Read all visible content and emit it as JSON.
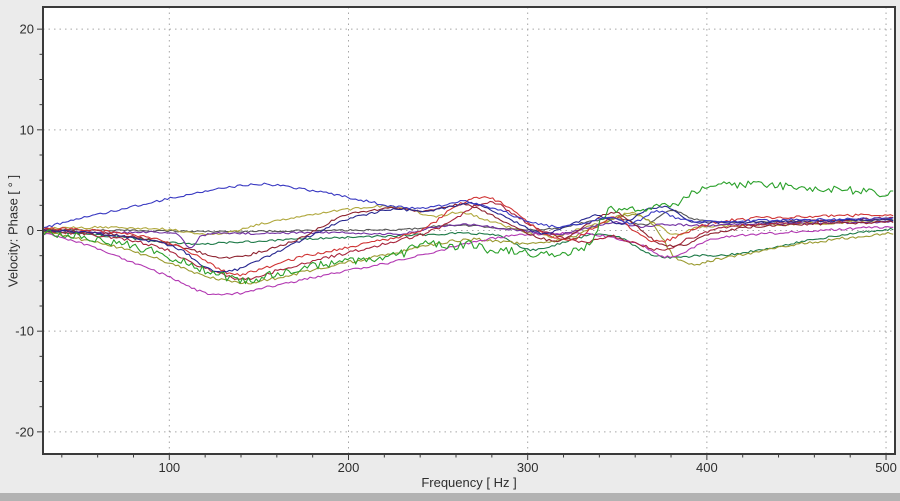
{
  "window": {
    "background": "#ebebeb",
    "bottom_strip_color": "#b2b2b2"
  },
  "chart_data": {
    "type": "line",
    "title": "",
    "xlabel": "Frequency [ Hz ]",
    "ylabel": "Velocity: Phase [ ° ]",
    "xlim": [
      29.5,
      505
    ],
    "ylim": [
      -22.2,
      22.2
    ],
    "x_ticks": [
      100,
      200,
      300,
      400,
      500
    ],
    "x_minor_step": 20,
    "y_ticks": [
      -20,
      -10,
      0,
      10,
      20
    ],
    "y_minor_step": 2.5,
    "grid_style": "dotted",
    "legend": "none",
    "plot_bg": "#ffffff",
    "frame_color": "#3a3a3a",
    "grid_color": "#a6a6a6",
    "tick_color": "#3a3a3a",
    "tick_label_color": "#2e2e2e",
    "series": [
      {
        "name": "gray",
        "color": "#565656",
        "noise": 0.08,
        "points": [
          [
            30,
            0.1
          ],
          [
            80,
            0.0
          ],
          [
            130,
            -0.1
          ],
          [
            180,
            0.0
          ],
          [
            230,
            0.1
          ],
          [
            255,
            0.5
          ],
          [
            275,
            0.4
          ],
          [
            295,
            0.1
          ],
          [
            315,
            0.2
          ],
          [
            335,
            0.9
          ],
          [
            352,
            1.2
          ],
          [
            366,
            0.6
          ],
          [
            380,
            2.0
          ],
          [
            392,
            1.2
          ],
          [
            410,
            0.8
          ],
          [
            440,
            0.9
          ],
          [
            480,
            1.0
          ],
          [
            512,
            1.1
          ]
        ]
      },
      {
        "name": "dark-yellow",
        "color": "#b0a83e",
        "noise": 0.12,
        "points": [
          [
            30,
            0.2
          ],
          [
            70,
            0.3
          ],
          [
            100,
            0.1
          ],
          [
            125,
            -0.4
          ],
          [
            150,
            0.6
          ],
          [
            175,
            1.5
          ],
          [
            200,
            2.1
          ],
          [
            220,
            2.4
          ],
          [
            235,
            2.0
          ],
          [
            248,
            1.4
          ],
          [
            262,
            1.8
          ],
          [
            275,
            1.2
          ],
          [
            288,
            0.4
          ],
          [
            300,
            -0.2
          ],
          [
            315,
            -0.6
          ],
          [
            330,
            0.2
          ],
          [
            345,
            1.0
          ],
          [
            358,
            1.7
          ],
          [
            370,
            0.8
          ],
          [
            382,
            -0.4
          ],
          [
            395,
            0.3
          ],
          [
            420,
            0.5
          ],
          [
            460,
            0.7
          ],
          [
            512,
            1.0
          ]
        ]
      },
      {
        "name": "sea-green",
        "color": "#1e7a48",
        "noise": 0.1,
        "points": [
          [
            30,
            -0.1
          ],
          [
            70,
            -0.6
          ],
          [
            110,
            -1.3
          ],
          [
            145,
            -1.1
          ],
          [
            180,
            -0.8
          ],
          [
            215,
            -0.6
          ],
          [
            245,
            -0.4
          ],
          [
            265,
            -0.3
          ],
          [
            285,
            -0.6
          ],
          [
            300,
            -1.9
          ],
          [
            312,
            -1.6
          ],
          [
            325,
            -0.9
          ],
          [
            338,
            -0.4
          ],
          [
            352,
            -0.7
          ],
          [
            366,
            -2.2
          ],
          [
            380,
            -2.7
          ],
          [
            395,
            -2.5
          ],
          [
            412,
            -2.4
          ],
          [
            430,
            -1.9
          ],
          [
            450,
            -1.2
          ],
          [
            470,
            -0.6
          ],
          [
            490,
            -0.1
          ],
          [
            512,
            0.3
          ]
        ]
      },
      {
        "name": "olive",
        "color": "#9a9a30",
        "noise": 0.15,
        "points": [
          [
            30,
            -0.2
          ],
          [
            60,
            -1.2
          ],
          [
            90,
            -2.6
          ],
          [
            115,
            -4.2
          ],
          [
            140,
            -5.2
          ],
          [
            160,
            -4.7
          ],
          [
            185,
            -3.7
          ],
          [
            210,
            -2.8
          ],
          [
            232,
            -2.0
          ],
          [
            250,
            -1.3
          ],
          [
            268,
            -0.9
          ],
          [
            285,
            -1.1
          ],
          [
            300,
            -1.3
          ],
          [
            315,
            -1.0
          ],
          [
            330,
            -0.3
          ],
          [
            344,
            0.9
          ],
          [
            358,
            1.6
          ],
          [
            370,
            0.6
          ],
          [
            382,
            -2.6
          ],
          [
            392,
            -3.3
          ],
          [
            405,
            -2.9
          ],
          [
            425,
            -2.2
          ],
          [
            450,
            -1.4
          ],
          [
            475,
            -0.8
          ],
          [
            495,
            -0.4
          ],
          [
            512,
            -0.2
          ]
        ]
      },
      {
        "name": "magenta",
        "color": "#b238b2",
        "noise": 0.12,
        "points": [
          [
            30,
            -0.3
          ],
          [
            55,
            -1.5
          ],
          [
            80,
            -3.2
          ],
          [
            100,
            -4.6
          ],
          [
            115,
            -5.9
          ],
          [
            126,
            -6.4
          ],
          [
            140,
            -6.2
          ],
          [
            158,
            -5.5
          ],
          [
            180,
            -4.7
          ],
          [
            205,
            -3.8
          ],
          [
            228,
            -3.0
          ],
          [
            248,
            -2.1
          ],
          [
            266,
            -1.3
          ],
          [
            284,
            -0.7
          ],
          [
            300,
            -0.4
          ],
          [
            318,
            -0.3
          ],
          [
            335,
            -0.4
          ],
          [
            350,
            -0.8
          ],
          [
            364,
            -1.5
          ],
          [
            376,
            -2.6
          ],
          [
            388,
            -2.1
          ],
          [
            400,
            -1.0
          ],
          [
            418,
            -0.5
          ],
          [
            445,
            -0.2
          ],
          [
            480,
            0.2
          ],
          [
            512,
            0.4
          ]
        ]
      },
      {
        "name": "purple",
        "color": "#7230a2",
        "noise": 0.1,
        "points": [
          [
            30,
            0.0
          ],
          [
            70,
            -0.2
          ],
          [
            105,
            -0.4
          ],
          [
            112,
            -1.8
          ],
          [
            118,
            -0.5
          ],
          [
            150,
            -0.3
          ],
          [
            190,
            -0.2
          ],
          [
            230,
            -0.3
          ],
          [
            250,
            0.4
          ],
          [
            268,
            0.6
          ],
          [
            285,
            0.2
          ],
          [
            300,
            -0.1
          ],
          [
            316,
            -0.4
          ],
          [
            332,
            0.2
          ],
          [
            348,
            0.8
          ],
          [
            362,
            0.4
          ],
          [
            376,
            0.6
          ],
          [
            395,
            0.5
          ],
          [
            420,
            0.6
          ],
          [
            455,
            0.7
          ],
          [
            512,
            0.9
          ]
        ]
      },
      {
        "name": "crimson",
        "color": "#a8253c",
        "noise": 0.15,
        "points": [
          [
            30,
            0.0
          ],
          [
            65,
            -0.6
          ],
          [
            95,
            -1.7
          ],
          [
            118,
            -3.6
          ],
          [
            140,
            -4.8
          ],
          [
            158,
            -4.1
          ],
          [
            180,
            -3.0
          ],
          [
            205,
            -2.0
          ],
          [
            228,
            -1.0
          ],
          [
            244,
            -0.2
          ],
          [
            258,
            1.0
          ],
          [
            270,
            2.4
          ],
          [
            282,
            2.7
          ],
          [
            294,
            1.4
          ],
          [
            306,
            0.2
          ],
          [
            320,
            -0.7
          ],
          [
            334,
            -1.1
          ],
          [
            348,
            -0.6
          ],
          [
            362,
            -1.4
          ],
          [
            376,
            -1.9
          ],
          [
            390,
            -0.8
          ],
          [
            408,
            0.2
          ],
          [
            435,
            0.7
          ],
          [
            470,
            1.0
          ],
          [
            512,
            1.3
          ]
        ]
      },
      {
        "name": "maroon",
        "color": "#8e2330",
        "noise": 0.12,
        "points": [
          [
            30,
            0.1
          ],
          [
            70,
            -0.4
          ],
          [
            100,
            -1.3
          ],
          [
            122,
            -2.4
          ],
          [
            135,
            -2.7
          ],
          [
            155,
            -1.9
          ],
          [
            175,
            -0.6
          ],
          [
            195,
            1.3
          ],
          [
            212,
            2.0
          ],
          [
            228,
            2.2
          ],
          [
            240,
            1.9
          ],
          [
            252,
            2.3
          ],
          [
            265,
            2.6
          ],
          [
            278,
            1.7
          ],
          [
            292,
            0.4
          ],
          [
            306,
            -0.7
          ],
          [
            320,
            -0.9
          ],
          [
            334,
            0.7
          ],
          [
            348,
            1.8
          ],
          [
            360,
            0.5
          ],
          [
            373,
            -1.2
          ],
          [
            386,
            -1.5
          ],
          [
            400,
            -0.5
          ],
          [
            422,
            0.3
          ],
          [
            455,
            0.6
          ],
          [
            512,
            0.9
          ]
        ]
      },
      {
        "name": "red",
        "color": "#d03434",
        "noise": 0.15,
        "points": [
          [
            30,
            0.2
          ],
          [
            60,
            0.0
          ],
          [
            85,
            -0.6
          ],
          [
            105,
            -1.6
          ],
          [
            122,
            -3.2
          ],
          [
            136,
            -4.4
          ],
          [
            150,
            -3.9
          ],
          [
            168,
            -2.9
          ],
          [
            190,
            -2.0
          ],
          [
            212,
            -1.2
          ],
          [
            232,
            -0.5
          ],
          [
            246,
            0.6
          ],
          [
            258,
            2.2
          ],
          [
            268,
            3.1
          ],
          [
            278,
            3.3
          ],
          [
            290,
            2.2
          ],
          [
            300,
            0.9
          ],
          [
            312,
            -0.6
          ],
          [
            325,
            -0.9
          ],
          [
            338,
            0.4
          ],
          [
            350,
            1.3
          ],
          [
            362,
            -0.4
          ],
          [
            374,
            -1.1
          ],
          [
            386,
            -0.4
          ],
          [
            400,
            0.6
          ],
          [
            425,
            1.2
          ],
          [
            460,
            1.4
          ],
          [
            512,
            1.6
          ]
        ]
      },
      {
        "name": "navy",
        "color": "#26268e",
        "noise": 0.12,
        "points": [
          [
            30,
            0.1
          ],
          [
            60,
            -0.3
          ],
          [
            85,
            -0.9
          ],
          [
            105,
            -1.8
          ],
          [
            120,
            -3.6
          ],
          [
            132,
            -4.1
          ],
          [
            147,
            -3.2
          ],
          [
            163,
            -1.9
          ],
          [
            180,
            -0.4
          ],
          [
            196,
            0.9
          ],
          [
            212,
            1.7
          ],
          [
            228,
            2.1
          ],
          [
            242,
            1.9
          ],
          [
            255,
            2.3
          ],
          [
            268,
            2.7
          ],
          [
            280,
            2.0
          ],
          [
            294,
            0.8
          ],
          [
            308,
            -0.3
          ],
          [
            322,
            0.4
          ],
          [
            338,
            1.5
          ],
          [
            352,
            0.7
          ],
          [
            366,
            2.0
          ],
          [
            378,
            2.3
          ],
          [
            390,
            1.0
          ],
          [
            410,
            0.8
          ],
          [
            445,
            0.9
          ],
          [
            512,
            1.1
          ]
        ]
      },
      {
        "name": "green",
        "color": "#2aa02a",
        "noise": 0.4,
        "points": [
          [
            30,
            -0.2
          ],
          [
            60,
            -0.9
          ],
          [
            90,
            -2.0
          ],
          [
            115,
            -3.6
          ],
          [
            140,
            -4.9
          ],
          [
            160,
            -4.3
          ],
          [
            185,
            -3.4
          ],
          [
            210,
            -2.8
          ],
          [
            230,
            -2.3
          ],
          [
            243,
            -1.1
          ],
          [
            255,
            -1.7
          ],
          [
            268,
            -1.4
          ],
          [
            282,
            -2.1
          ],
          [
            296,
            -2.0
          ],
          [
            308,
            -2.4
          ],
          [
            320,
            -2.2
          ],
          [
            333,
            -1.6
          ],
          [
            344,
            1.8
          ],
          [
            358,
            2.1
          ],
          [
            372,
            2.4
          ],
          [
            386,
            3.0
          ],
          [
            398,
            4.3
          ],
          [
            412,
            4.6
          ],
          [
            432,
            4.5
          ],
          [
            455,
            4.3
          ],
          [
            478,
            4.0
          ],
          [
            500,
            3.7
          ],
          [
            512,
            3.6
          ]
        ]
      },
      {
        "name": "blue",
        "color": "#3a3ac2",
        "noise": 0.12,
        "points": [
          [
            30,
            0.3
          ],
          [
            50,
            1.2
          ],
          [
            70,
            2.0
          ],
          [
            90,
            2.8
          ],
          [
            110,
            3.5
          ],
          [
            130,
            4.2
          ],
          [
            148,
            4.6
          ],
          [
            165,
            4.4
          ],
          [
            185,
            3.8
          ],
          [
            205,
            3.1
          ],
          [
            225,
            2.4
          ],
          [
            240,
            2.2
          ],
          [
            252,
            2.5
          ],
          [
            262,
            2.9
          ],
          [
            272,
            2.6
          ],
          [
            285,
            2.0
          ],
          [
            300,
            0.9
          ],
          [
            315,
            0.4
          ],
          [
            330,
            0.6
          ],
          [
            345,
            1.3
          ],
          [
            358,
            0.7
          ],
          [
            372,
            1.9
          ],
          [
            385,
            1.1
          ],
          [
            400,
            0.9
          ],
          [
            430,
            1.0
          ],
          [
            470,
            1.1
          ],
          [
            512,
            1.2
          ]
        ]
      }
    ]
  }
}
